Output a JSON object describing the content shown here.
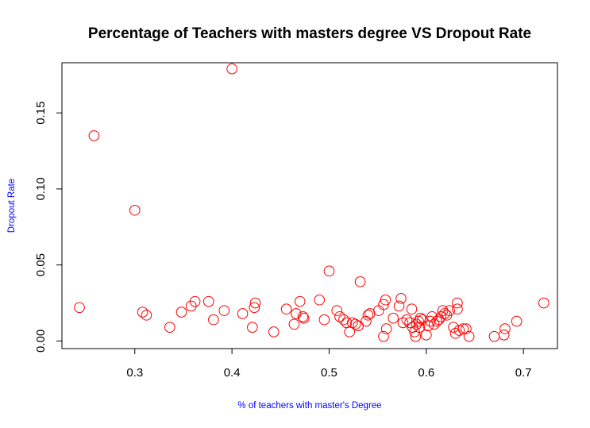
{
  "chart_data": {
    "type": "scatter",
    "title": "Percentage of Teachers with masters degree VS Dropout Rate",
    "xlabel": "% of teachers with master's Degree",
    "ylabel": "Dropout Rate",
    "xlim": [
      0.225,
      0.735
    ],
    "ylim": [
      -0.005,
      0.183
    ],
    "x_ticks": [
      0.3,
      0.4,
      0.5,
      0.6,
      0.7
    ],
    "x_tick_labels": [
      "0.3",
      "0.4",
      "0.5",
      "0.6",
      "0.7"
    ],
    "y_ticks": [
      0.0,
      0.05,
      0.1,
      0.15
    ],
    "y_tick_labels": [
      "0.00",
      "0.05",
      "0.10",
      "0.15"
    ],
    "grid": false,
    "marker": "open-circle",
    "colors": {
      "points": "#ff0000",
      "axis_labels": "#0000ff",
      "text": "#000000",
      "frame": "#000000"
    },
    "points": [
      {
        "x": 0.243,
        "y": 0.022
      },
      {
        "x": 0.258,
        "y": 0.135
      },
      {
        "x": 0.3,
        "y": 0.086
      },
      {
        "x": 0.308,
        "y": 0.019
      },
      {
        "x": 0.312,
        "y": 0.017
      },
      {
        "x": 0.336,
        "y": 0.009
      },
      {
        "x": 0.348,
        "y": 0.019
      },
      {
        "x": 0.358,
        "y": 0.023
      },
      {
        "x": 0.362,
        "y": 0.026
      },
      {
        "x": 0.376,
        "y": 0.026
      },
      {
        "x": 0.381,
        "y": 0.014
      },
      {
        "x": 0.392,
        "y": 0.02
      },
      {
        "x": 0.4,
        "y": 0.179
      },
      {
        "x": 0.411,
        "y": 0.018
      },
      {
        "x": 0.421,
        "y": 0.009
      },
      {
        "x": 0.423,
        "y": 0.022
      },
      {
        "x": 0.424,
        "y": 0.025
      },
      {
        "x": 0.443,
        "y": 0.006
      },
      {
        "x": 0.456,
        "y": 0.021
      },
      {
        "x": 0.464,
        "y": 0.011
      },
      {
        "x": 0.466,
        "y": 0.018
      },
      {
        "x": 0.47,
        "y": 0.026
      },
      {
        "x": 0.473,
        "y": 0.016
      },
      {
        "x": 0.474,
        "y": 0.015
      },
      {
        "x": 0.49,
        "y": 0.027
      },
      {
        "x": 0.495,
        "y": 0.014
      },
      {
        "x": 0.5,
        "y": 0.046
      },
      {
        "x": 0.508,
        "y": 0.02
      },
      {
        "x": 0.511,
        "y": 0.016
      },
      {
        "x": 0.515,
        "y": 0.014
      },
      {
        "x": 0.518,
        "y": 0.012
      },
      {
        "x": 0.521,
        "y": 0.006
      },
      {
        "x": 0.524,
        "y": 0.012
      },
      {
        "x": 0.527,
        "y": 0.011
      },
      {
        "x": 0.53,
        "y": 0.01
      },
      {
        "x": 0.532,
        "y": 0.039
      },
      {
        "x": 0.538,
        "y": 0.013
      },
      {
        "x": 0.54,
        "y": 0.017
      },
      {
        "x": 0.542,
        "y": 0.018
      },
      {
        "x": 0.551,
        "y": 0.02
      },
      {
        "x": 0.556,
        "y": 0.024
      },
      {
        "x": 0.556,
        "y": 0.003
      },
      {
        "x": 0.558,
        "y": 0.027
      },
      {
        "x": 0.559,
        "y": 0.008
      },
      {
        "x": 0.566,
        "y": 0.015
      },
      {
        "x": 0.572,
        "y": 0.023
      },
      {
        "x": 0.574,
        "y": 0.028
      },
      {
        "x": 0.576,
        "y": 0.012
      },
      {
        "x": 0.58,
        "y": 0.014
      },
      {
        "x": 0.583,
        "y": 0.012
      },
      {
        "x": 0.585,
        "y": 0.021
      },
      {
        "x": 0.586,
        "y": 0.009
      },
      {
        "x": 0.588,
        "y": 0.006
      },
      {
        "x": 0.589,
        "y": 0.003
      },
      {
        "x": 0.59,
        "y": 0.011
      },
      {
        "x": 0.592,
        "y": 0.013
      },
      {
        "x": 0.593,
        "y": 0.009
      },
      {
        "x": 0.594,
        "y": 0.015
      },
      {
        "x": 0.596,
        "y": 0.014
      },
      {
        "x": 0.6,
        "y": 0.004
      },
      {
        "x": 0.602,
        "y": 0.01
      },
      {
        "x": 0.604,
        "y": 0.013
      },
      {
        "x": 0.606,
        "y": 0.016
      },
      {
        "x": 0.608,
        "y": 0.011
      },
      {
        "x": 0.611,
        "y": 0.013
      },
      {
        "x": 0.613,
        "y": 0.014
      },
      {
        "x": 0.615,
        "y": 0.016
      },
      {
        "x": 0.617,
        "y": 0.02
      },
      {
        "x": 0.619,
        "y": 0.018
      },
      {
        "x": 0.621,
        "y": 0.017
      },
      {
        "x": 0.624,
        "y": 0.02
      },
      {
        "x": 0.628,
        "y": 0.009
      },
      {
        "x": 0.63,
        "y": 0.005
      },
      {
        "x": 0.632,
        "y": 0.025
      },
      {
        "x": 0.632,
        "y": 0.021
      },
      {
        "x": 0.634,
        "y": 0.007
      },
      {
        "x": 0.638,
        "y": 0.008
      },
      {
        "x": 0.641,
        "y": 0.008
      },
      {
        "x": 0.644,
        "y": 0.003
      },
      {
        "x": 0.67,
        "y": 0.003
      },
      {
        "x": 0.68,
        "y": 0.004
      },
      {
        "x": 0.681,
        "y": 0.008
      },
      {
        "x": 0.693,
        "y": 0.013
      },
      {
        "x": 0.721,
        "y": 0.025
      }
    ]
  }
}
